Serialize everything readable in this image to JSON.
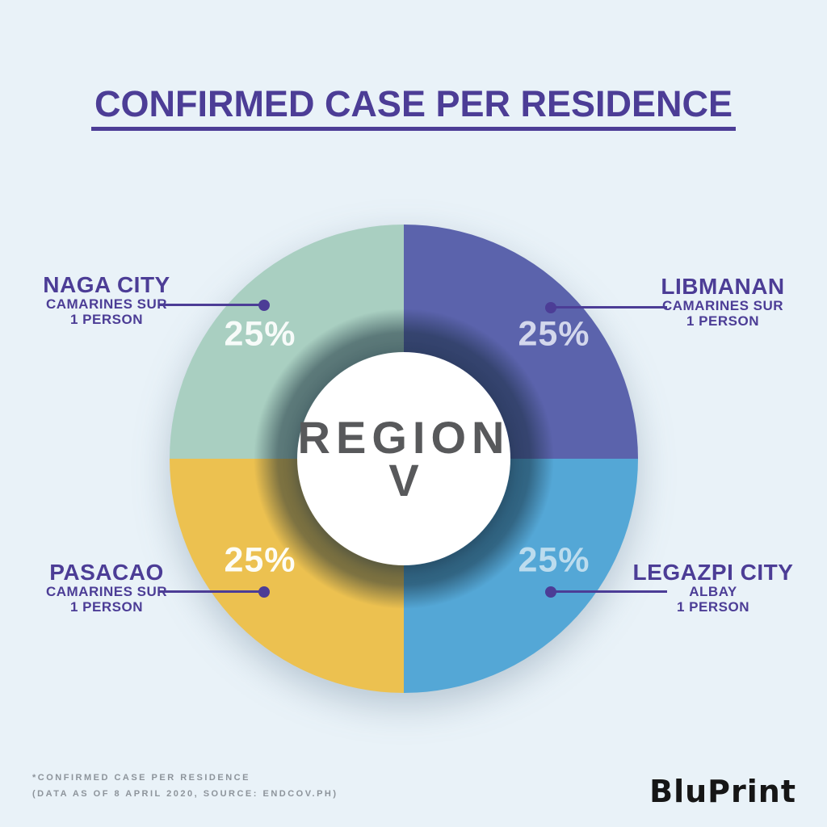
{
  "title": "CONFIRMED CASE PER RESIDENCE",
  "center": {
    "line1": "REGION",
    "line2": "V"
  },
  "chart_data": {
    "type": "pie",
    "variant": "donut",
    "title": "CONFIRMED CASE PER RESIDENCE",
    "center_label": "REGION V",
    "legend_position": "callouts-around-chart",
    "segments_clockwise_from_top": true,
    "segments": [
      {
        "name": "LIBMANAN",
        "province": "CAMARINES SUR",
        "count": "1 PERSON",
        "value": 25,
        "percent_label": "25%",
        "color": "#5b63ac",
        "percent_color": "#d3d7ec",
        "position": "top-right"
      },
      {
        "name": "LEGAZPI CITY",
        "province": "ALBAY",
        "count": "1 PERSON",
        "value": 25,
        "percent_label": "25%",
        "color": "#54a7d6",
        "percent_color": "#bcdcee",
        "position": "bottom-right"
      },
      {
        "name": "PASACAO",
        "province": "CAMARINES SUR",
        "count": "1 PERSON",
        "value": 25,
        "percent_label": "25%",
        "color": "#ecc150",
        "percent_color": "#fdfdf6",
        "position": "bottom-left"
      },
      {
        "name": "NAGA CITY",
        "province": "CAMARINES SUR",
        "count": "1 PERSON",
        "value": 25,
        "percent_label": "25%",
        "color": "#a9cfc1",
        "percent_color": "#f7fbf9",
        "position": "top-left"
      }
    ]
  },
  "footnote": {
    "line1": "*CONFIRMED CASE PER RESIDENCE",
    "line2": "(DATA AS OF 8 APRIL 2020, SOURCE: ENDCOV.PH)"
  },
  "brand": "BluPrint",
  "colors": {
    "background": "#e9f2f8",
    "accent_purple": "#4c3d96",
    "center_text": "#58595b",
    "footnote_text": "#8d949b",
    "brand_text": "#161616"
  }
}
